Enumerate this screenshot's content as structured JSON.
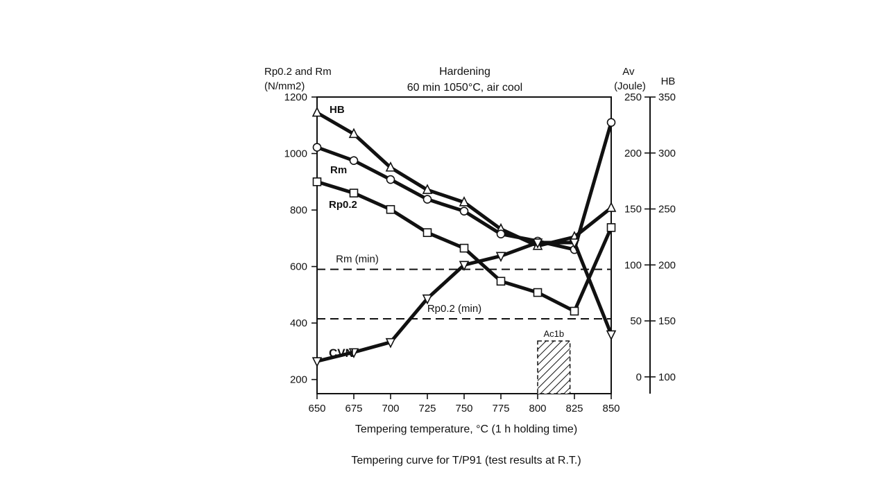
{
  "chart_data": {
    "type": "line",
    "title": "Hardening",
    "subtitle": "60 min 1050°C, air cool",
    "caption": "Tempering curve for T/P91 (test results at R.T.)",
    "xlabel": "Tempering temperature, °C (1 h holding time)",
    "ylabel_left": "Rp0.2 and Rm\n(N/mm2)",
    "ylabel_av": "Av\n(Joule)",
    "ylabel_hb": "HB",
    "x_ticks": [
      650,
      675,
      700,
      725,
      750,
      775,
      800,
      825,
      850
    ],
    "xlim": [
      650,
      850
    ],
    "ylim_left": [
      150,
      1200
    ],
    "y_ticks_left": [
      200,
      400,
      600,
      800,
      1000,
      1200
    ],
    "ylim_av": [
      -15,
      250
    ],
    "y_ticks_av": [
      0,
      50,
      100,
      150,
      200,
      250
    ],
    "ylim_hb": [
      85,
      350
    ],
    "y_ticks_hb": [
      100,
      150,
      200,
      250,
      300,
      350
    ],
    "grid": false,
    "series": [
      {
        "name": "HB",
        "axis": "hb",
        "marker": "triangle-up",
        "x": [
          650,
          675,
          700,
          725,
          750,
          775,
          800,
          825,
          850
        ],
        "values": [
          336,
          317,
          287,
          267,
          256,
          232,
          217,
          225,
          251
        ]
      },
      {
        "name": "Rm",
        "axis": "left",
        "marker": "circle",
        "x": [
          650,
          675,
          700,
          725,
          750,
          775,
          800,
          825,
          850
        ],
        "values": [
          1022,
          975,
          908,
          838,
          796,
          715,
          690,
          660,
          1110
        ]
      },
      {
        "name": "Rp0.2",
        "axis": "left",
        "marker": "square",
        "x": [
          650,
          675,
          700,
          725,
          750,
          775,
          800,
          825,
          850
        ],
        "values": [
          900,
          860,
          802,
          720,
          665,
          548,
          508,
          442,
          738
        ]
      },
      {
        "name": "CVN",
        "axis": "av",
        "marker": "triangle-down",
        "x": [
          650,
          675,
          700,
          725,
          750,
          775,
          800,
          825,
          850
        ],
        "values": [
          14,
          22,
          31,
          70,
          100,
          108,
          120,
          120,
          38
        ]
      }
    ],
    "reference_lines": [
      {
        "label": "Rm (min)",
        "axis": "left",
        "value": 590
      },
      {
        "label": "Rp0.2 (min)",
        "axis": "left",
        "value": 415
      }
    ],
    "shaded_region": {
      "label": "Ac1b",
      "x_from": 800,
      "x_to": 822
    }
  }
}
